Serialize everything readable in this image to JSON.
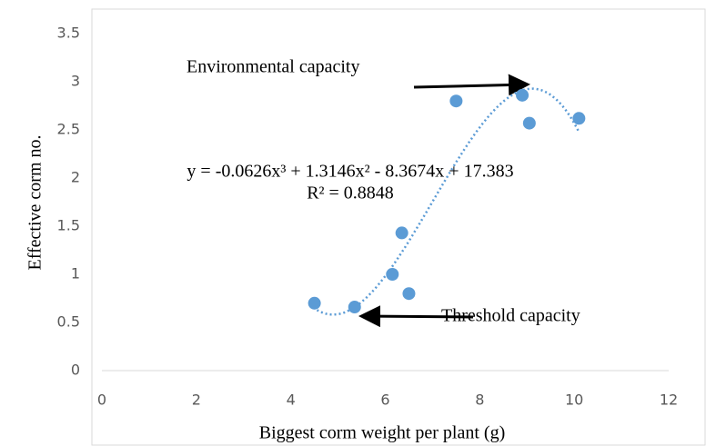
{
  "chart_data": {
    "type": "scatter",
    "x_label": "Biggest corm weight per plant (g)",
    "y_label": "Effective corm no.",
    "color": "#5b9bd5",
    "x": [
      4.5,
      5.35,
      6.15,
      6.35,
      6.5,
      7.5,
      8.9,
      9.05,
      10.1
    ],
    "values": [
      0.7,
      0.66,
      1.0,
      1.43,
      0.8,
      2.8,
      2.86,
      2.57,
      2.62
    ],
    "xlim": [
      0,
      12
    ],
    "xticks": [
      0,
      2,
      4,
      6,
      8,
      10,
      12
    ],
    "ylim": [
      0,
      3.5
    ],
    "yticks": [
      0,
      0.5,
      1,
      1.5,
      2,
      2.5,
      3,
      3.5
    ],
    "trendline": {
      "coefficients": [
        -0.0626,
        1.3146,
        -8.3674,
        17.383
      ],
      "x_range": [
        4.4,
        10.1
      ],
      "equation": "y = -0.0626x³ + 1.3146x² - 8.3674x + 17.383",
      "r_squared": "R² = 0.8848"
    },
    "annotations": [
      "Environmental capacity",
      "Threshold capacity"
    ]
  }
}
